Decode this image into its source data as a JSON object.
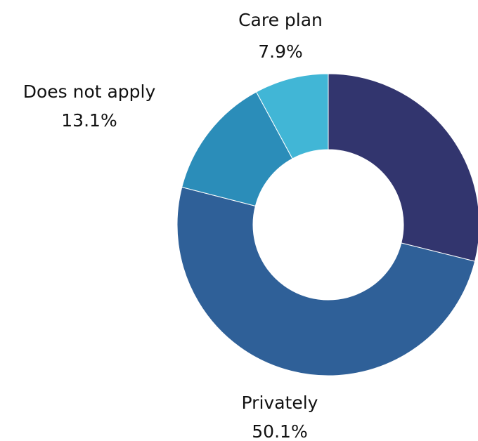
{
  "chart_data": {
    "type": "pie",
    "donut": true,
    "slices": [
      {
        "label": "",
        "value": 28.9,
        "display": "",
        "color": "#32356e"
      },
      {
        "label": "Privately",
        "value": 50.1,
        "display": "50.1%",
        "color": "#2f6098"
      },
      {
        "label": "Does not apply",
        "value": 13.1,
        "display": "13.1%",
        "color": "#2b8db9"
      },
      {
        "label": "Care plan",
        "value": 7.9,
        "display": "7.9%",
        "color": "#41b6d6"
      }
    ]
  }
}
